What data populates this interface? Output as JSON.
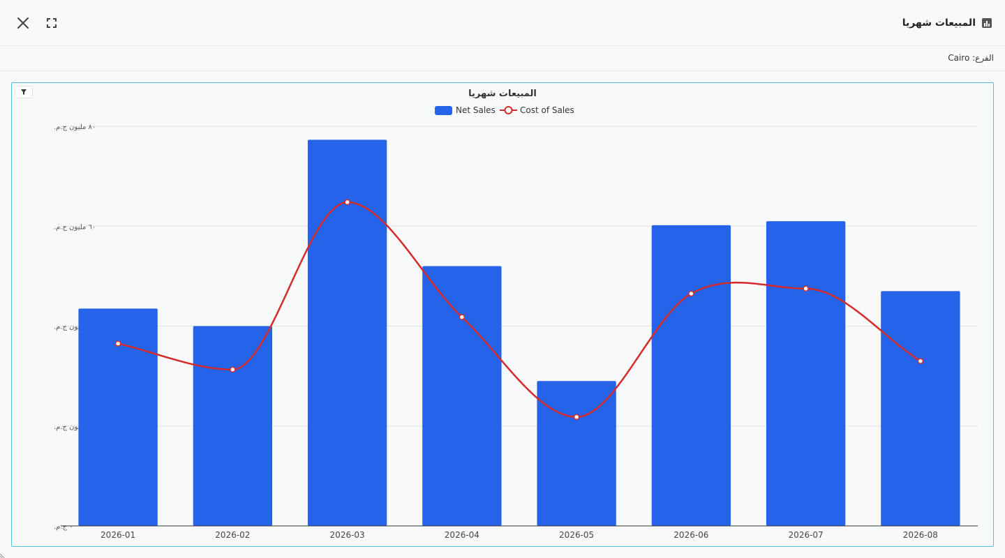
{
  "header": {
    "title": "المبيعات شهريا",
    "icon": "bar-chart-icon",
    "close_icon": "close-icon",
    "expand_icon": "fullscreen-icon"
  },
  "filter": {
    "branch_label": "الفرع: Cairo"
  },
  "colors": {
    "bar": "#2563e8",
    "line": "#d42b2b",
    "border": "#4fc0d8"
  },
  "chart_data": {
    "type": "bar",
    "title": "المبيعات شهريا",
    "categories": [
      "2026-01",
      "2026-02",
      "2026-03",
      "2026-04",
      "2026-05",
      "2026-06",
      "2026-07",
      "2026-08"
    ],
    "series": [
      {
        "name": "Net Sales",
        "type": "bar",
        "values": [
          43.5,
          40.0,
          77.3,
          52.0,
          29.0,
          60.2,
          61.0,
          47.0
        ]
      },
      {
        "name": "Cost of Sales",
        "type": "line",
        "smooth": true,
        "values": [
          36.5,
          31.3,
          64.8,
          41.8,
          21.8,
          46.5,
          47.5,
          33.0
        ]
      }
    ],
    "ylim": [
      0,
      80
    ],
    "yticks": [
      0,
      20,
      40,
      60,
      80
    ],
    "ytick_labels": [
      "٠ ج.م.",
      "٢٠ مليون ج.م.",
      "٤٠ مليون ج.م.",
      "٦٠ مليون ج.م.",
      "٨٠ مليون ج.م."
    ],
    "legend_position": "top-center",
    "grid": true
  }
}
